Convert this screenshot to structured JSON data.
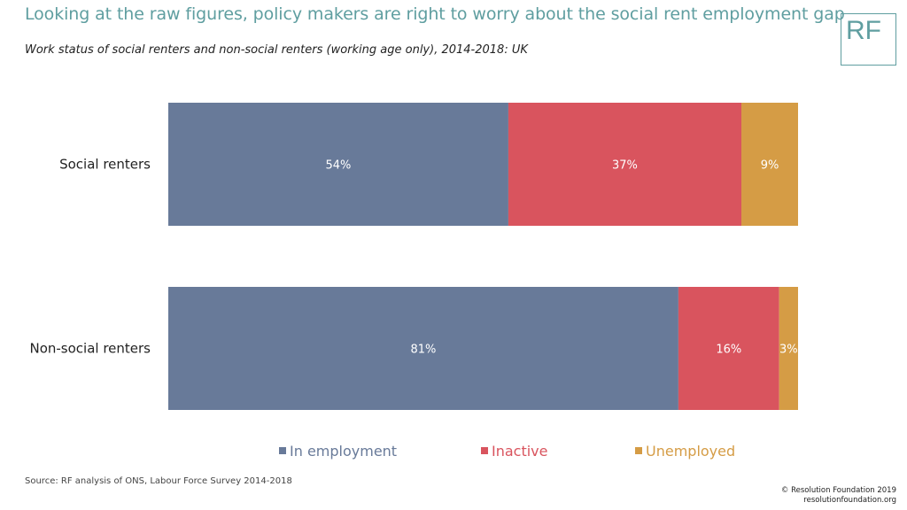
{
  "header": {
    "title": "Looking at the raw figures, policy makers are right to worry about the social rent employment gap",
    "subtitle": "Work status of social renters and non-social renters (working age only), 2014-2018: UK",
    "logo_text": "RF"
  },
  "chart_data": {
    "type": "bar",
    "orientation": "horizontal",
    "stacked": true,
    "categories": [
      "Social renters",
      "Non-social renters"
    ],
    "series": [
      {
        "name": "In employment",
        "color": "#687a99",
        "values": [
          54,
          81
        ],
        "labels": [
          "54%",
          "81%"
        ]
      },
      {
        "name": "Inactive",
        "color": "#d9545e",
        "values": [
          37,
          16
        ],
        "labels": [
          "37%",
          "16%"
        ]
      },
      {
        "name": "Unemployed",
        "color": "#d59c45",
        "values": [
          9,
          3
        ],
        "labels": [
          "9%",
          "3%"
        ]
      }
    ],
    "xlim": [
      0,
      100
    ],
    "grid": false,
    "legend_position": "bottom"
  },
  "footer": {
    "source": "Source: RF analysis of ONS, Labour Force Survey 2014-2018",
    "copyright": "© Resolution Foundation 2019",
    "website": "resolutionfoundation.org"
  }
}
